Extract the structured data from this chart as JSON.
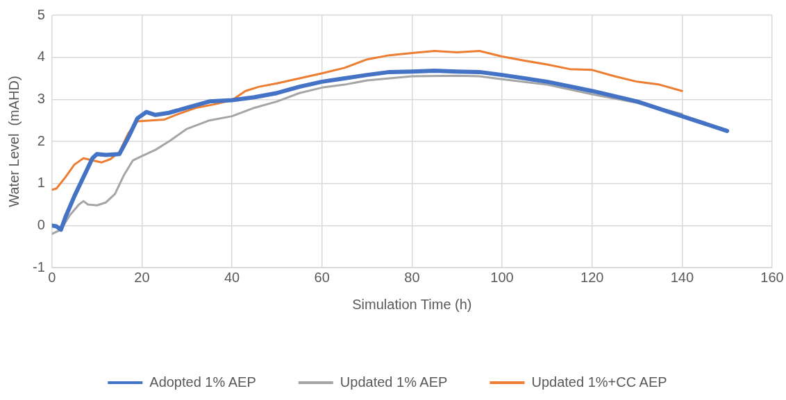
{
  "chart_data": {
    "type": "line",
    "xlabel": "Simulation Time (h)",
    "ylabel": "Water Level  (mAHD)",
    "xlim": [
      0,
      160
    ],
    "xticks": [
      0,
      20,
      40,
      60,
      80,
      100,
      120,
      140,
      160
    ],
    "ylim": [
      -1,
      5
    ],
    "yticks": [
      -1,
      0,
      1,
      2,
      3,
      4,
      5
    ],
    "grid": true,
    "legend": "bottom",
    "marker": "none",
    "line_style": "solid",
    "series": [
      {
        "name": "Adopted 1% AEP",
        "color": "#4472c4",
        "x": [
          0,
          1,
          2,
          3,
          5,
          7,
          9,
          10,
          12,
          15,
          17,
          19,
          21,
          23,
          26,
          30,
          35,
          40,
          45,
          50,
          55,
          60,
          65,
          70,
          75,
          80,
          85,
          90,
          95,
          100,
          110,
          120,
          130,
          140,
          150
        ],
        "values": [
          0,
          -0.02,
          -0.1,
          0.2,
          0.7,
          1.15,
          1.6,
          1.7,
          1.68,
          1.7,
          2.1,
          2.55,
          2.7,
          2.63,
          2.68,
          2.8,
          2.95,
          2.98,
          3.05,
          3.15,
          3.3,
          3.42,
          3.5,
          3.58,
          3.65,
          3.66,
          3.68,
          3.66,
          3.65,
          3.58,
          3.42,
          3.2,
          2.95,
          2.6,
          2.25
        ]
      },
      {
        "name": "Updated 1% AEP",
        "color": "#a5a5a5",
        "x": [
          0,
          2,
          4,
          6,
          7,
          8,
          10,
          12,
          14,
          16,
          18,
          20,
          23,
          26,
          30,
          35,
          40,
          45,
          50,
          55,
          60,
          65,
          70,
          75,
          80,
          90,
          95,
          100,
          110,
          120,
          130,
          140
        ],
        "values": [
          -0.2,
          -0.1,
          0.25,
          0.5,
          0.58,
          0.5,
          0.48,
          0.55,
          0.75,
          1.2,
          1.55,
          1.65,
          1.8,
          2.0,
          2.3,
          2.5,
          2.6,
          2.8,
          2.95,
          3.15,
          3.28,
          3.35,
          3.45,
          3.5,
          3.55,
          3.56,
          3.55,
          3.48,
          3.35,
          3.12,
          2.92,
          2.65
        ]
      },
      {
        "name": "Updated 1%+CC AEP",
        "color": "#ed7d31",
        "x": [
          0,
          1,
          3,
          5,
          7,
          9,
          11,
          13,
          15,
          17,
          19,
          22,
          25,
          28,
          32,
          36,
          40,
          43,
          46,
          50,
          55,
          60,
          65,
          70,
          75,
          80,
          85,
          90,
          95,
          100,
          105,
          110,
          115,
          120,
          125,
          130,
          135,
          140
        ],
        "values": [
          0.85,
          0.88,
          1.15,
          1.45,
          1.6,
          1.55,
          1.5,
          1.58,
          1.75,
          2.2,
          2.48,
          2.5,
          2.52,
          2.65,
          2.8,
          2.88,
          2.98,
          3.2,
          3.3,
          3.38,
          3.5,
          3.62,
          3.75,
          3.95,
          4.05,
          4.1,
          4.15,
          4.12,
          4.15,
          4.02,
          3.92,
          3.83,
          3.72,
          3.7,
          3.55,
          3.42,
          3.35,
          3.2
        ]
      }
    ]
  }
}
